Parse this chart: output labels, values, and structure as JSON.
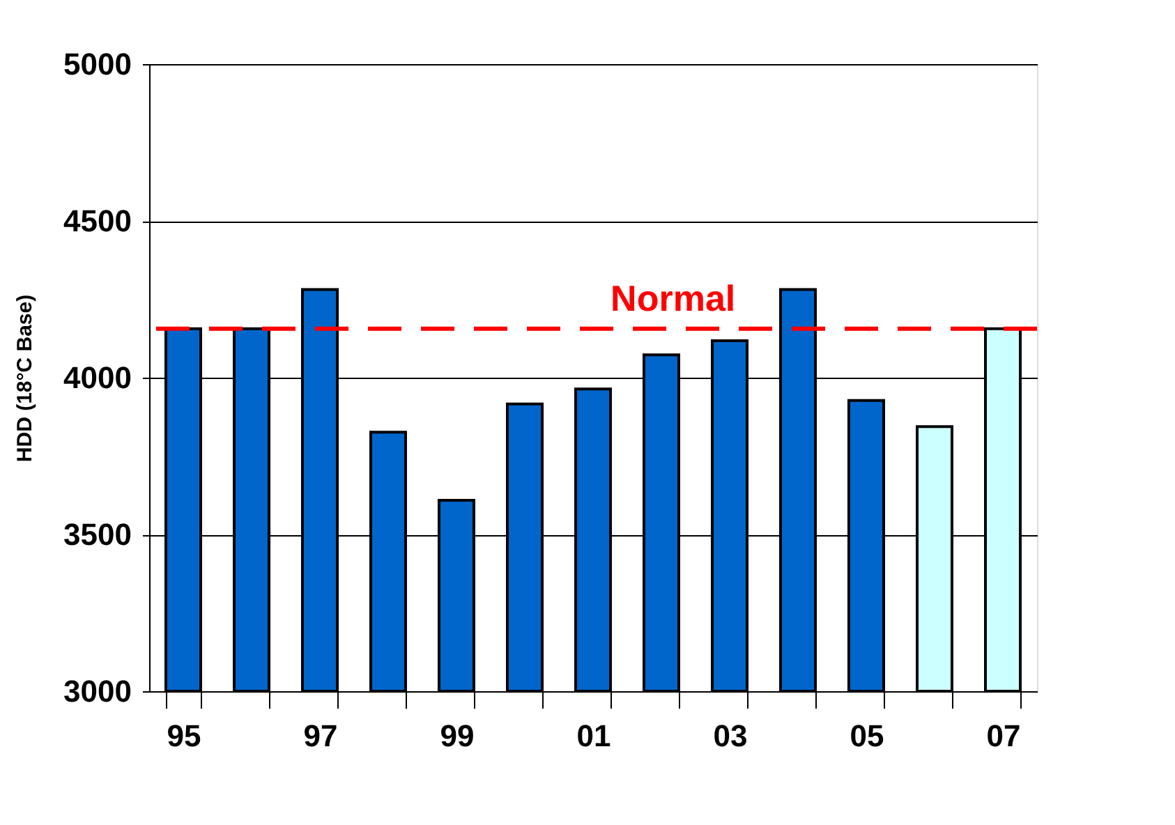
{
  "chart_data": {
    "type": "bar",
    "ylabel": "HDD  (18°C Base)",
    "categories": [
      "95",
      null,
      "97",
      null,
      "99",
      null,
      "01",
      null,
      "03",
      null,
      "05",
      null,
      "07"
    ],
    "values": [
      4156,
      4156,
      4281,
      3826,
      3609,
      3916,
      3964,
      4073,
      4118,
      4281,
      3927,
      3844,
      4156
    ],
    "colors": [
      "#0066cc",
      "#0066cc",
      "#0066cc",
      "#0066cc",
      "#0066cc",
      "#0066cc",
      "#0066cc",
      "#0066cc",
      "#0066cc",
      "#0066cc",
      "#0066cc",
      "#ccffff",
      "#ccffff"
    ],
    "ylim": [
      3000,
      5000
    ],
    "yticks": [
      3000,
      3500,
      4000,
      4500,
      5000
    ],
    "grid": "y",
    "ref_lines": [
      {
        "axis": "y",
        "value": 4156,
        "label": "Normal",
        "color": "#ff0000",
        "line_style": "dashed"
      }
    ]
  }
}
